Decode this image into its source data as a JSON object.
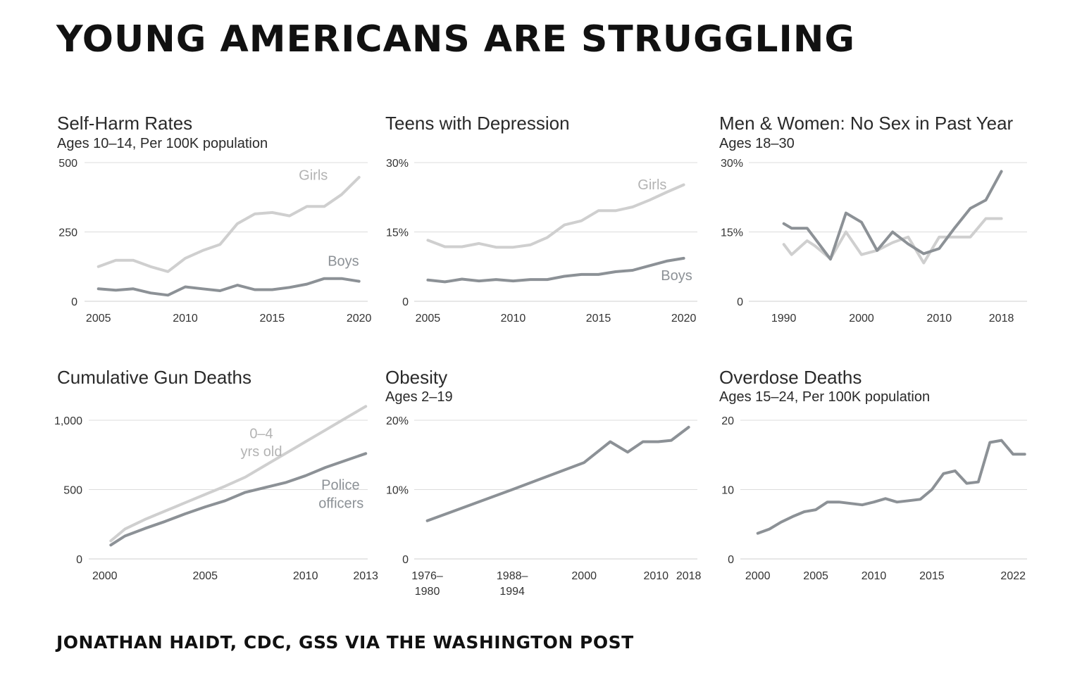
{
  "title": "YOUNG AMERICANS ARE STRUGGLING",
  "source": "JONATHAN HAIDT, CDC, GSS VIA THE WASHINGTON POST",
  "colors": {
    "light": "#cfcfcf",
    "dark": "#8c9196",
    "ann_light": "#b3b3b3",
    "ann_dark": "#8c9196"
  },
  "chart_data": [
    {
      "id": "self-harm",
      "type": "line",
      "title": "Self-Harm Rates",
      "subtitle": "Ages 10–14, Per 100K population",
      "ylim": [
        0,
        500
      ],
      "xlim": [
        2004.2,
        2020.5
      ],
      "yticks": [
        {
          "v": 0,
          "label": "0"
        },
        {
          "v": 250,
          "label": "250"
        },
        {
          "v": 500,
          "label": "500"
        }
      ],
      "xticks": [
        {
          "v": 2005,
          "label": "2005"
        },
        {
          "v": 2010,
          "label": "2010"
        },
        {
          "v": 2015,
          "label": "2015"
        },
        {
          "v": 2020,
          "label": "2020"
        }
      ],
      "series": [
        {
          "name": "Girls",
          "color": "light",
          "x": [
            2005,
            2006,
            2007,
            2008,
            2009,
            2010,
            2011,
            2012,
            2013,
            2014,
            2015,
            2016,
            2017,
            2018,
            2019,
            2020
          ],
          "values": [
            125,
            148,
            148,
            125,
            107,
            155,
            183,
            205,
            280,
            315,
            320,
            308,
            342,
            342,
            385,
            447
          ]
        },
        {
          "name": "Boys",
          "color": "dark",
          "x": [
            2005,
            2006,
            2007,
            2008,
            2009,
            2010,
            2011,
            2012,
            2013,
            2014,
            2015,
            2016,
            2017,
            2018,
            2019,
            2020
          ],
          "values": [
            45,
            40,
            45,
            30,
            22,
            52,
            45,
            38,
            58,
            42,
            42,
            50,
            62,
            82,
            82,
            72
          ]
        }
      ],
      "annotations": [
        {
          "text": "Girls",
          "x": 2018.2,
          "y": 438,
          "color": "ann_light",
          "anchor": "end"
        },
        {
          "text": "Boys",
          "x": 2020,
          "y": 128,
          "color": "ann_dark",
          "anchor": "end"
        }
      ]
    },
    {
      "id": "depression",
      "type": "line",
      "title": "Teens with Depression",
      "subtitle": "",
      "ylim": [
        0,
        30
      ],
      "xlim": [
        2004.2,
        2020.8
      ],
      "yticks": [
        {
          "v": 0,
          "label": "0"
        },
        {
          "v": 15,
          "label": "15%"
        },
        {
          "v": 30,
          "label": "30%"
        }
      ],
      "xticks": [
        {
          "v": 2005,
          "label": "2005"
        },
        {
          "v": 2010,
          "label": "2010"
        },
        {
          "v": 2015,
          "label": "2015"
        },
        {
          "v": 2020,
          "label": "2020"
        }
      ],
      "series": [
        {
          "name": "Girls",
          "color": "light",
          "x": [
            2005,
            2006,
            2007,
            2008,
            2009,
            2010,
            2011,
            2012,
            2013,
            2014,
            2015,
            2016,
            2017,
            2018,
            2019,
            2020
          ],
          "values": [
            13.2,
            11.8,
            11.8,
            12.5,
            11.7,
            11.7,
            12.2,
            13.8,
            16.5,
            17.4,
            19.6,
            19.6,
            20.4,
            21.9,
            23.6,
            25.2
          ]
        },
        {
          "name": "Boys",
          "color": "dark",
          "x": [
            2005,
            2006,
            2007,
            2008,
            2009,
            2010,
            2011,
            2012,
            2013,
            2014,
            2015,
            2016,
            2017,
            2018,
            2019,
            2020
          ],
          "values": [
            4.6,
            4.2,
            4.8,
            4.4,
            4.7,
            4.4,
            4.7,
            4.7,
            5.4,
            5.8,
            5.8,
            6.4,
            6.7,
            7.7,
            8.7,
            9.3
          ]
        }
      ],
      "annotations": [
        {
          "text": "Girls",
          "x": 2019,
          "y": 24.2,
          "color": "ann_light",
          "anchor": "end"
        },
        {
          "text": "Boys",
          "x": 2020.5,
          "y": 4.6,
          "color": "ann_dark",
          "anchor": "end"
        }
      ]
    },
    {
      "id": "no-sex",
      "type": "line",
      "title": "Men & Women: No Sex in Past Year",
      "subtitle": "Ages 18–30",
      "ylim": [
        0,
        30
      ],
      "xlim": [
        1985.5,
        2021.3
      ],
      "yticks": [
        {
          "v": 0,
          "label": "0"
        },
        {
          "v": 15,
          "label": "15%"
        },
        {
          "v": 30,
          "label": "30%"
        }
      ],
      "xticks": [
        {
          "v": 1990,
          "label": "1990"
        },
        {
          "v": 2000,
          "label": "2000"
        },
        {
          "v": 2010,
          "label": "2010"
        },
        {
          "v": 2018,
          "label": "2018"
        }
      ],
      "series": [
        {
          "name": "Women",
          "color": "light",
          "x": [
            1990,
            1991,
            1993,
            1994,
            1996,
            1998,
            2000,
            2002,
            2004,
            2006,
            2008,
            2010,
            2012,
            2014,
            2016,
            2018
          ],
          "values": [
            12.3,
            10.1,
            13.1,
            12.0,
            9.2,
            15.0,
            10.1,
            11.0,
            12.7,
            13.9,
            8.3,
            13.9,
            13.9,
            13.9,
            17.9,
            17.9
          ]
        },
        {
          "name": "Men",
          "color": "dark",
          "x": [
            1990,
            1991,
            1993,
            1994,
            1996,
            1998,
            2000,
            2002,
            2004,
            2006,
            2008,
            2010,
            2012,
            2014,
            2016,
            2018
          ],
          "values": [
            16.8,
            15.8,
            15.8,
            13.6,
            9.1,
            19.1,
            17.1,
            11.0,
            15.0,
            12.4,
            10.3,
            11.4,
            15.9,
            20.1,
            21.9,
            28.1
          ]
        }
      ],
      "annotations": []
    },
    {
      "id": "gun-deaths",
      "type": "line",
      "title": "Cumulative Gun Deaths",
      "subtitle": "",
      "ylim": [
        0,
        1000
      ],
      "xlim": [
        1999.2,
        2013.1
      ],
      "yticks": [
        {
          "v": 0,
          "label": "0"
        },
        {
          "v": 500,
          "label": "500"
        },
        {
          "v": 1000,
          "label": "1,000"
        }
      ],
      "xticks": [
        {
          "v": 2000,
          "label": "2000"
        },
        {
          "v": 2005,
          "label": "2005"
        },
        {
          "v": 2010,
          "label": "2010"
        },
        {
          "v": 2013,
          "label": "2013"
        }
      ],
      "series": [
        {
          "name": "0–4 yrs old",
          "color": "light",
          "x": [
            2000.3,
            2001,
            2002,
            2003,
            2004,
            2005,
            2006,
            2007,
            2008,
            2009,
            2010,
            2011,
            2012,
            2013
          ],
          "values": [
            130,
            215,
            285,
            345,
            405,
            465,
            525,
            590,
            675,
            760,
            845,
            930,
            1015,
            1100
          ]
        },
        {
          "name": "Police officers",
          "color": "dark",
          "x": [
            2000.3,
            2001,
            2002,
            2003,
            2004,
            2005,
            2006,
            2007,
            2008,
            2009,
            2010,
            2011,
            2012,
            2013
          ],
          "values": [
            100,
            165,
            220,
            270,
            325,
            375,
            420,
            480,
            515,
            550,
            600,
            660,
            710,
            760
          ]
        }
      ],
      "annotations": [
        {
          "text": "0–4",
          "x": 2007.8,
          "y": 870,
          "color": "ann_light",
          "anchor": "middle"
        },
        {
          "text": "yrs old",
          "x": 2007.8,
          "y": 740,
          "color": "ann_light",
          "anchor": "middle"
        },
        {
          "text": "Police",
          "x": 2012.7,
          "y": 500,
          "color": "ann_dark",
          "anchor": "end"
        },
        {
          "text": "officers",
          "x": 2012.9,
          "y": 367,
          "color": "ann_dark",
          "anchor": "end"
        }
      ]
    },
    {
      "id": "obesity",
      "type": "line",
      "title": "Obesity",
      "subtitle": "Ages 2–19",
      "ylim": [
        0,
        20
      ],
      "xlim": [
        -0.6,
        12.4
      ],
      "yticks": [
        {
          "v": 0,
          "label": "0"
        },
        {
          "v": 10,
          "label": "10%"
        },
        {
          "v": 20,
          "label": "20%"
        }
      ],
      "xticks": [
        {
          "v": 0,
          "label": "1976–",
          "label2": "1980"
        },
        {
          "v": 3.9,
          "label": "1988–",
          "label2": "1994"
        },
        {
          "v": 7.2,
          "label": "2000",
          "label2": ""
        },
        {
          "v": 10.5,
          "label": "2010",
          "label2": ""
        },
        {
          "v": 12.0,
          "label": "2018",
          "label2": ""
        }
      ],
      "series": [
        {
          "name": "Obesity",
          "color": "dark",
          "x": [
            0,
            3.9,
            7.2,
            8.4,
            9.2,
            9.9,
            10.6,
            11.2,
            12.0
          ],
          "values": [
            5.5,
            10.0,
            13.9,
            16.9,
            15.4,
            16.9,
            16.9,
            17.1,
            19.0
          ]
        }
      ],
      "annotations": []
    },
    {
      "id": "overdose",
      "type": "line",
      "title": "Overdose Deaths",
      "subtitle": "Ages 15–24, Per 100K population",
      "ylim": [
        0,
        20
      ],
      "xlim": [
        1998.5,
        2023.2
      ],
      "yticks": [
        {
          "v": 0,
          "label": "0"
        },
        {
          "v": 10,
          "label": "10"
        },
        {
          "v": 20,
          "label": "20"
        }
      ],
      "xticks": [
        {
          "v": 2000,
          "label": "2000"
        },
        {
          "v": 2005,
          "label": "2005"
        },
        {
          "v": 2010,
          "label": "2010"
        },
        {
          "v": 2015,
          "label": "2015"
        },
        {
          "v": 2022,
          "label": "2022"
        }
      ],
      "series": [
        {
          "name": "Overdose",
          "color": "dark",
          "x": [
            2000,
            2001,
            2002,
            2003,
            2004,
            2005,
            2006,
            2007,
            2008,
            2009,
            2010,
            2011,
            2012,
            2013,
            2014,
            2015,
            2016,
            2017,
            2018,
            2019,
            2020,
            2021,
            2022,
            2023
          ],
          "values": [
            3.7,
            4.3,
            5.3,
            6.1,
            6.8,
            7.1,
            8.2,
            8.2,
            8.0,
            7.8,
            8.2,
            8.7,
            8.2,
            8.4,
            8.6,
            10.0,
            12.3,
            12.7,
            10.9,
            11.1,
            16.8,
            17.1,
            15.1,
            15.1
          ]
        }
      ],
      "annotations": []
    }
  ]
}
